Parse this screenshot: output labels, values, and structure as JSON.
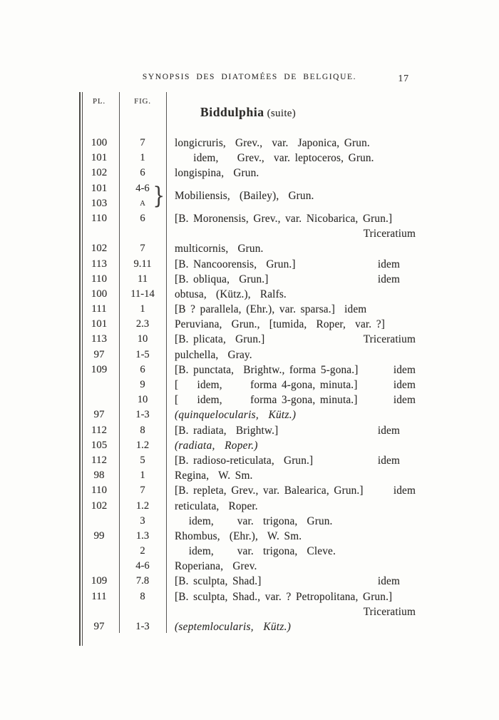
{
  "header": {
    "title": "SYNOPSIS DES DIATOMÉES DE BELGIQUE.",
    "page_number": "17"
  },
  "table": {
    "col_headers": {
      "pl": "PL.",
      "fig": "FIG."
    },
    "section_title": {
      "genus": "Biddulphia",
      "suffix": "(suite)"
    },
    "rows": [
      {
        "pl": "100",
        "fig": "7",
        "text": "longicruris,  Grev.,  var.  Japonica, Grun."
      },
      {
        "pl": "101",
        "fig": "1",
        "text": "    idem,    Grev.,  var. leptoceros, Grun."
      },
      {
        "pl": "102",
        "fig": "6",
        "text": "longispina,  Grun."
      },
      {
        "type": "group",
        "pl2": [
          "101",
          "103"
        ],
        "fig2": [
          "4-6",
          "A"
        ],
        "brace": "}",
        "text": "Mobiliensis,  (Bailey),  Grun."
      },
      {
        "pl": "110",
        "fig": "6",
        "text": "[B. Moronensis, Grev., var. Nicobarica, Grun.]"
      },
      {
        "type": "right",
        "right": "Triceratium"
      },
      {
        "pl": "102",
        "fig": "7",
        "text": "multicornis,  Grun."
      },
      {
        "pl": "113",
        "fig": "9.11",
        "text": "[B. Nancoorensis,  Grun.]",
        "right": "idem",
        "pad": true
      },
      {
        "pl": "110",
        "fig": "11",
        "text": "[B. obliqua,  Grun.]",
        "right": "idem",
        "pad": true
      },
      {
        "pl": "100",
        "fig": "11-14",
        "text": "obtusa,  (Kütz.),  Ralfs."
      },
      {
        "pl": "111",
        "fig": "1",
        "text": "[B ? parallela, (Ehr.), var. sparsa.]  idem"
      },
      {
        "pl": "101",
        "fig": "2.3",
        "text": "Peruviana,  Grun.,  [tumida,  Roper,  var. ?]"
      },
      {
        "pl": "113",
        "fig": "10",
        "text": "[B. plicata,  Grun.]",
        "right": "Triceratium"
      },
      {
        "pl": "97",
        "fig": "1-5",
        "text": "pulchella,  Gray."
      },
      {
        "pl": "109",
        "fig": "6",
        "text": "[B. punctata,  Brightw., forma 5-gona.]",
        "right": "idem"
      },
      {
        "pl": "",
        "fig": "9",
        "text": "[    idem,      forma 4-gona, minuta.]",
        "right": "idem"
      },
      {
        "pl": "",
        "fig": "10",
        "text": "[    idem,      forma 3-gona, minuta.]",
        "right": "idem"
      },
      {
        "pl": "97",
        "fig": "1-3",
        "text": "(quinquelocularis,  Kütz.)",
        "italic": true
      },
      {
        "pl": "112",
        "fig": "8",
        "text": "[B. radiata,  Brightw.]",
        "right": "idem",
        "pad": true
      },
      {
        "pl": "105",
        "fig": "1.2",
        "text": "(radiata,  Roper.)",
        "italic": true
      },
      {
        "pl": "112",
        "fig": "5",
        "text": "[B. radioso-reticulata,  Grun.]",
        "right": "idem",
        "pad": true
      },
      {
        "pl": "98",
        "fig": "1",
        "text": "Regina,  W. Sm."
      },
      {
        "pl": "110",
        "fig": "7",
        "text": "[B. repleta, Grev., var. Balearica, Grun.]",
        "right": "idem"
      },
      {
        "pl": "102",
        "fig": "1.2",
        "text": "reticulata,  Roper."
      },
      {
        "pl": "",
        "fig": "3",
        "text": "   idem,     var.  trigona,  Grun."
      },
      {
        "pl": "99",
        "fig": "1.3",
        "text": "Rhombus,  (Ehr.),  W. Sm."
      },
      {
        "pl": "",
        "fig": "2",
        "text": "   idem,     var.  trigona,  Cleve."
      },
      {
        "pl": "",
        "fig": "4-6",
        "text": "Roperiana,  Grev."
      },
      {
        "pl": "109",
        "fig": "7.8",
        "text": "[B. sculpta, Shad.]",
        "right": "idem",
        "pad": true
      },
      {
        "pl": "111",
        "fig": "8",
        "text": "[B. sculpta, Shad., var. ? Petropolitana, Grun.]"
      },
      {
        "type": "right",
        "right": "Triceratium"
      },
      {
        "pl": "97",
        "fig": "1-3",
        "text": "(septemlocularis,  Kütz.)",
        "italic": true
      }
    ]
  }
}
